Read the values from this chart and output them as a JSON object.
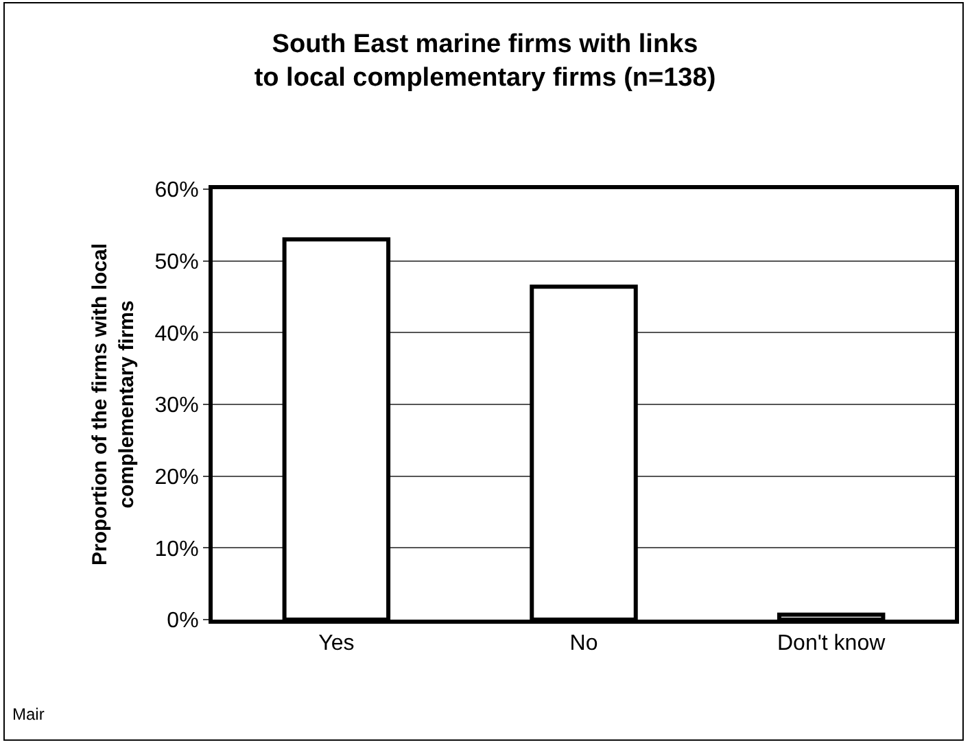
{
  "chart_data": {
    "type": "bar",
    "title": "South East marine firms with links\nto local complementary firms (n=138)",
    "ylabel": "Proportion of the firms with local\ncomplementary firms",
    "categories": [
      "Yes",
      "No",
      "Don't know"
    ],
    "values": [
      53.0,
      46.4,
      0.7
    ],
    "color": "#ffffff",
    "ylim": [
      0,
      60
    ],
    "yticks": [
      {
        "value": 0,
        "label": "0%"
      },
      {
        "value": 10,
        "label": "10%"
      },
      {
        "value": 20,
        "label": "20%"
      },
      {
        "value": 30,
        "label": "30%"
      },
      {
        "value": 40,
        "label": "40%"
      },
      {
        "value": 50,
        "label": "50%"
      },
      {
        "value": 60,
        "label": "60%"
      }
    ],
    "grid": "y",
    "legend": false,
    "annotations": [
      "Mair"
    ]
  }
}
